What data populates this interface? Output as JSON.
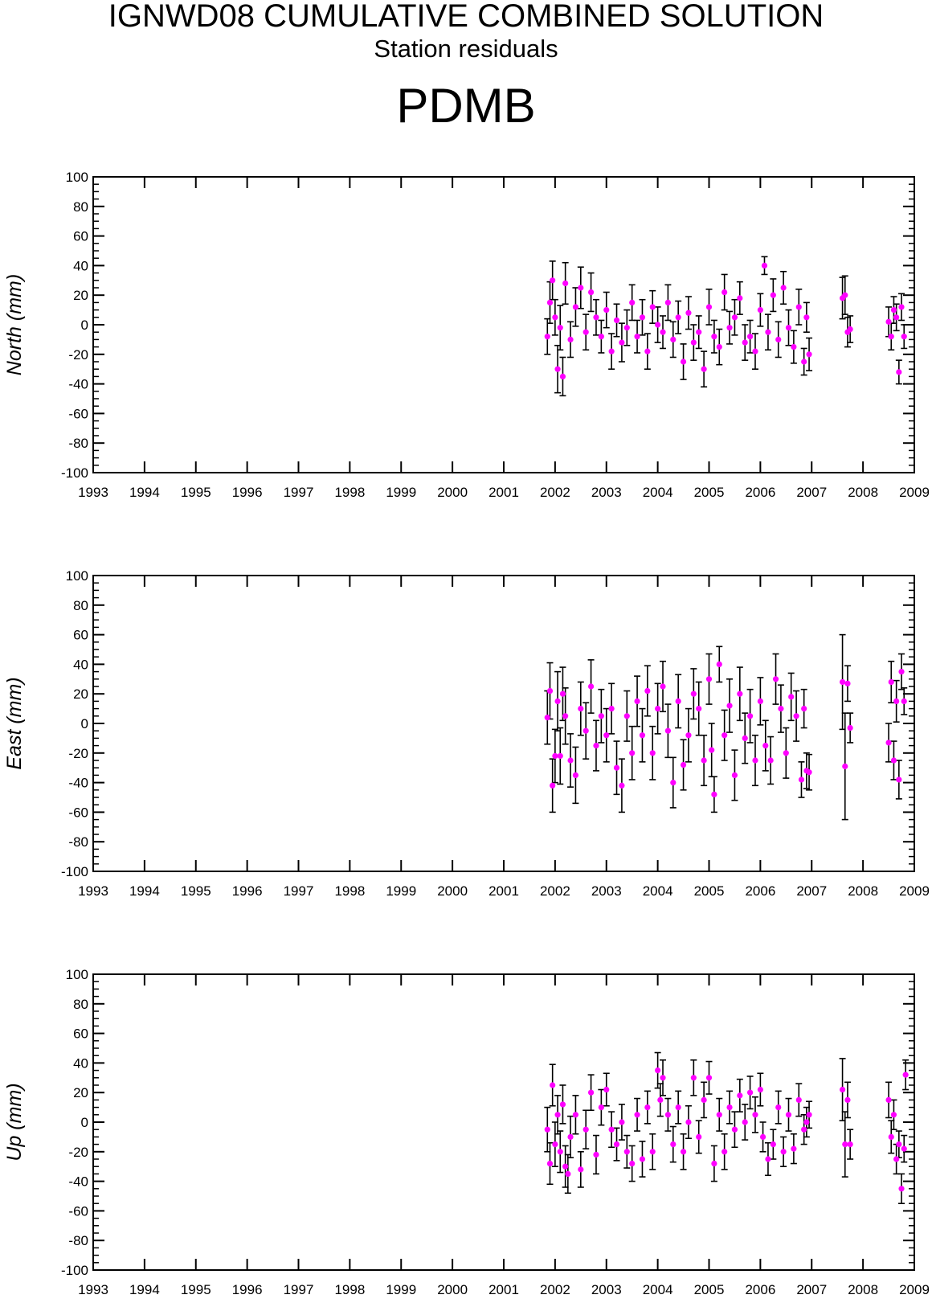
{
  "header": {
    "title": "IGNWD08 CUMULATIVE COMBINED SOLUTION",
    "subtitle": "Station residuals",
    "station": "PDMB"
  },
  "colors": {
    "points": "#ff00ff",
    "errorbars": "#000000",
    "axes": "#000000"
  },
  "chart_data": [
    {
      "type": "scatter",
      "title": "",
      "xlabel": "",
      "ylabel": "North (mm)",
      "xlim": [
        1993,
        2009
      ],
      "ylim": [
        -100,
        100
      ],
      "xticks": [
        "1993",
        "1994",
        "1995",
        "1996",
        "1997",
        "1998",
        "1999",
        "2000",
        "2001",
        "2002",
        "2003",
        "2004",
        "2005",
        "2006",
        "2007",
        "2008",
        "2009"
      ],
      "yticks": [
        "100",
        "80",
        "60",
        "40",
        "20",
        "0",
        "-20",
        "-40",
        "-60",
        "-80",
        "-100"
      ],
      "grid": false,
      "error_bars": true,
      "series": [
        {
          "x": [
            2001.85,
            2001.9,
            2001.95,
            2002.0,
            2002.05,
            2002.1,
            2002.15,
            2002.2,
            2002.3,
            2002.4,
            2002.5,
            2002.6,
            2002.7,
            2002.8,
            2002.9,
            2003.0,
            2003.1,
            2003.2,
            2003.3,
            2003.4,
            2003.5,
            2003.6,
            2003.7,
            2003.8,
            2003.9,
            2004.0,
            2004.1,
            2004.2,
            2004.3,
            2004.4,
            2004.5,
            2004.6,
            2004.7,
            2004.8,
            2004.9,
            2005.0,
            2005.1,
            2005.2,
            2005.3,
            2005.4,
            2005.5,
            2005.6,
            2005.7,
            2005.8,
            2005.9,
            2006.0,
            2006.08,
            2006.15,
            2006.25,
            2006.35,
            2006.45,
            2006.55,
            2006.65,
            2006.75,
            2006.85,
            2006.9,
            2006.95,
            2007.6,
            2007.65,
            2007.7,
            2007.75,
            2008.5,
            2008.55,
            2008.6,
            2008.65,
            2008.7,
            2008.75,
            2008.8
          ],
          "y": [
            -8,
            15,
            30,
            5,
            -30,
            -2,
            -35,
            28,
            -10,
            12,
            25,
            -5,
            22,
            5,
            -8,
            10,
            -18,
            3,
            -12,
            -2,
            15,
            -8,
            5,
            -18,
            12,
            0,
            -5,
            15,
            -10,
            5,
            -25,
            8,
            -12,
            -5,
            -30,
            12,
            -8,
            -15,
            22,
            -2,
            5,
            18,
            -12,
            -8,
            -18,
            10,
            40,
            -5,
            20,
            -10,
            25,
            -2,
            -15,
            12,
            -25,
            5,
            -20,
            18,
            20,
            -5,
            -3,
            2,
            -8,
            10,
            5,
            -32,
            12,
            -8
          ],
          "err": [
            12,
            14,
            13,
            12,
            16,
            15,
            13,
            14,
            12,
            13,
            14,
            12,
            13,
            12,
            11,
            12,
            12,
            11,
            13,
            12,
            12,
            11,
            12,
            12,
            11,
            12,
            11,
            12,
            12,
            11,
            12,
            11,
            12,
            11,
            12,
            12,
            11,
            12,
            12,
            11,
            12,
            11,
            12,
            11,
            12,
            11,
            6,
            12,
            11,
            12,
            11,
            12,
            11,
            12,
            9,
            10,
            11,
            14,
            13,
            10,
            9,
            10,
            9,
            9,
            9,
            8,
            9,
            8
          ]
        }
      ]
    },
    {
      "type": "scatter",
      "title": "",
      "xlabel": "",
      "ylabel": "East (mm)",
      "xlim": [
        1993,
        2009
      ],
      "ylim": [
        -100,
        100
      ],
      "xticks": [
        "1993",
        "1994",
        "1995",
        "1996",
        "1997",
        "1998",
        "1999",
        "2000",
        "2001",
        "2002",
        "2003",
        "2004",
        "2005",
        "2006",
        "2007",
        "2008",
        "2009"
      ],
      "yticks": [
        "100",
        "80",
        "60",
        "40",
        "20",
        "0",
        "-20",
        "-40",
        "-60",
        "-80",
        "-100"
      ],
      "grid": false,
      "error_bars": true,
      "series": [
        {
          "x": [
            2001.85,
            2001.9,
            2001.95,
            2002.0,
            2002.05,
            2002.1,
            2002.15,
            2002.2,
            2002.3,
            2002.4,
            2002.5,
            2002.6,
            2002.7,
            2002.8,
            2002.9,
            2003.0,
            2003.1,
            2003.2,
            2003.3,
            2003.4,
            2003.5,
            2003.6,
            2003.7,
            2003.8,
            2003.9,
            2004.0,
            2004.1,
            2004.2,
            2004.3,
            2004.4,
            2004.5,
            2004.6,
            2004.7,
            2004.8,
            2004.9,
            2005.0,
            2005.05,
            2005.1,
            2005.2,
            2005.3,
            2005.4,
            2005.5,
            2005.6,
            2005.7,
            2005.8,
            2005.9,
            2006.0,
            2006.1,
            2006.2,
            2006.3,
            2006.4,
            2006.5,
            2006.6,
            2006.7,
            2006.8,
            2006.85,
            2006.9,
            2006.95,
            2007.6,
            2007.65,
            2007.7,
            2007.75,
            2008.5,
            2008.55,
            2008.6,
            2008.65,
            2008.7,
            2008.75,
            2008.8
          ],
          "y": [
            4,
            22,
            -42,
            -22,
            15,
            -22,
            20,
            5,
            -25,
            -35,
            10,
            -5,
            25,
            -15,
            5,
            -8,
            10,
            -30,
            -42,
            5,
            -20,
            15,
            -8,
            22,
            -20,
            10,
            25,
            -5,
            -40,
            15,
            -28,
            -8,
            20,
            10,
            -25,
            30,
            -18,
            -48,
            40,
            -8,
            12,
            -35,
            20,
            -10,
            5,
            -25,
            15,
            -15,
            -25,
            30,
            10,
            -20,
            18,
            5,
            -38,
            10,
            -32,
            -33,
            28,
            -29,
            27,
            -3,
            -13,
            28,
            -25,
            15,
            -38,
            35,
            15
          ],
          "err": [
            18,
            19,
            18,
            18,
            20,
            19,
            18,
            19,
            18,
            19,
            18,
            19,
            18,
            17,
            18,
            18,
            17,
            18,
            18,
            17,
            18,
            17,
            18,
            17,
            18,
            17,
            17,
            18,
            17,
            18,
            17,
            18,
            17,
            18,
            17,
            17,
            18,
            12,
            12,
            17,
            18,
            17,
            18,
            17,
            18,
            17,
            16,
            17,
            16,
            17,
            16,
            17,
            16,
            17,
            12,
            13,
            12,
            12,
            32,
            36,
            12,
            10,
            13,
            14,
            13,
            14,
            13,
            12,
            9
          ]
        }
      ]
    },
    {
      "type": "scatter",
      "title": "",
      "xlabel": "",
      "ylabel": "Up (mm)",
      "xlim": [
        1993,
        2009
      ],
      "ylim": [
        -100,
        100
      ],
      "xticks": [
        "1993",
        "1994",
        "1995",
        "1996",
        "1997",
        "1998",
        "1999",
        "2000",
        "2001",
        "2002",
        "2003",
        "2004",
        "2005",
        "2006",
        "2007",
        "2008",
        "2009"
      ],
      "yticks": [
        "100",
        "80",
        "60",
        "40",
        "20",
        "0",
        "-20",
        "-40",
        "-60",
        "-80",
        "-100"
      ],
      "grid": false,
      "error_bars": true,
      "series": [
        {
          "x": [
            2001.85,
            2001.9,
            2001.95,
            2002.0,
            2002.05,
            2002.1,
            2002.15,
            2002.2,
            2002.25,
            2002.3,
            2002.4,
            2002.5,
            2002.6,
            2002.7,
            2002.8,
            2002.9,
            2003.0,
            2003.1,
            2003.2,
            2003.3,
            2003.4,
            2003.5,
            2003.6,
            2003.7,
            2003.8,
            2003.9,
            2004.0,
            2004.05,
            2004.1,
            2004.2,
            2004.3,
            2004.4,
            2004.5,
            2004.6,
            2004.7,
            2004.8,
            2004.9,
            2005.0,
            2005.1,
            2005.2,
            2005.3,
            2005.4,
            2005.5,
            2005.6,
            2005.7,
            2005.8,
            2005.9,
            2006.0,
            2006.05,
            2006.15,
            2006.25,
            2006.35,
            2006.45,
            2006.55,
            2006.65,
            2006.75,
            2006.85,
            2006.9,
            2006.95,
            2007.6,
            2007.65,
            2007.7,
            2007.75,
            2008.5,
            2008.55,
            2008.6,
            2008.65,
            2008.7,
            2008.75,
            2008.8,
            2008.83
          ],
          "y": [
            -5,
            -28,
            25,
            -15,
            5,
            -20,
            12,
            -30,
            -35,
            -10,
            5,
            -32,
            -5,
            20,
            -22,
            10,
            22,
            -5,
            -15,
            0,
            -20,
            -28,
            5,
            -25,
            10,
            -20,
            35,
            15,
            30,
            5,
            -15,
            10,
            -20,
            0,
            30,
            -10,
            15,
            30,
            -28,
            5,
            -20,
            10,
            -5,
            18,
            0,
            20,
            5,
            22,
            -10,
            -25,
            -15,
            10,
            -20,
            5,
            -18,
            15,
            -5,
            0,
            5,
            22,
            -15,
            15,
            -15,
            15,
            -10,
            5,
            -25,
            -15,
            -45,
            -18,
            32
          ],
          "err": [
            15,
            14,
            14,
            15,
            13,
            14,
            13,
            14,
            13,
            14,
            13,
            12,
            13,
            12,
            13,
            12,
            11,
            12,
            11,
            12,
            11,
            12,
            11,
            12,
            11,
            12,
            12,
            11,
            12,
            11,
            12,
            11,
            12,
            11,
            12,
            11,
            12,
            11,
            12,
            11,
            12,
            11,
            12,
            11,
            12,
            11,
            12,
            11,
            10,
            11,
            10,
            11,
            10,
            11,
            10,
            11,
            10,
            10,
            9,
            21,
            22,
            12,
            10,
            12,
            11,
            10,
            10,
            9,
            10,
            9,
            10
          ]
        }
      ]
    }
  ]
}
